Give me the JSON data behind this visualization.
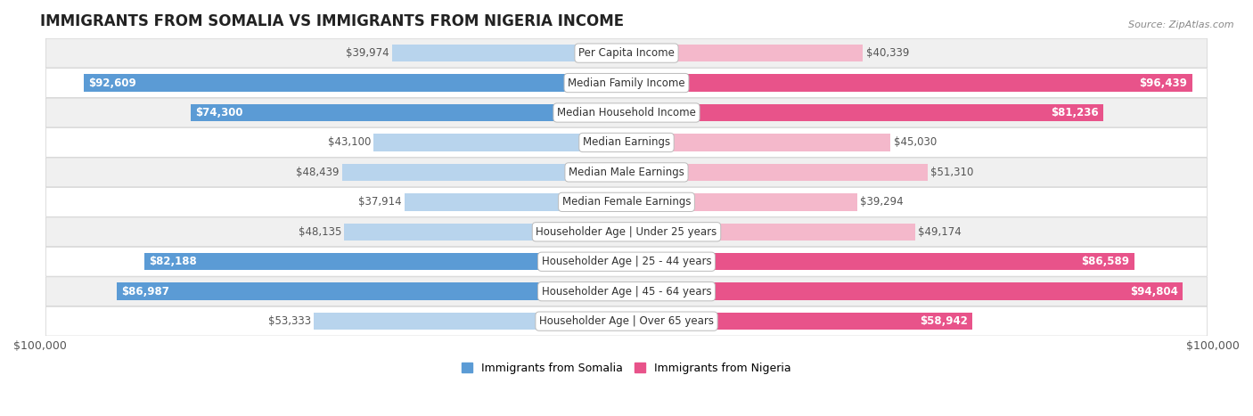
{
  "title": "IMMIGRANTS FROM SOMALIA VS IMMIGRANTS FROM NIGERIA INCOME",
  "source": "Source: ZipAtlas.com",
  "categories": [
    "Per Capita Income",
    "Median Family Income",
    "Median Household Income",
    "Median Earnings",
    "Median Male Earnings",
    "Median Female Earnings",
    "Householder Age | Under 25 years",
    "Householder Age | 25 - 44 years",
    "Householder Age | 45 - 64 years",
    "Householder Age | Over 65 years"
  ],
  "somalia_values": [
    39974,
    92609,
    74300,
    43100,
    48439,
    37914,
    48135,
    82188,
    86987,
    53333
  ],
  "nigeria_values": [
    40339,
    96439,
    81236,
    45030,
    51310,
    39294,
    49174,
    86589,
    94804,
    58942
  ],
  "somalia_labels": [
    "$39,974",
    "$92,609",
    "$74,300",
    "$43,100",
    "$48,439",
    "$37,914",
    "$48,135",
    "$82,188",
    "$86,987",
    "$53,333"
  ],
  "nigeria_labels": [
    "$40,339",
    "$96,439",
    "$81,236",
    "$45,030",
    "$51,310",
    "$39,294",
    "$49,174",
    "$86,589",
    "$94,804",
    "$58,942"
  ],
  "somalia_color_light": "#b8d4ed",
  "somalia_color_dark": "#5b9bd5",
  "nigeria_color_light": "#f4b8cb",
  "nigeria_color_dark": "#e8538a",
  "max_value": 100000,
  "bar_height": 0.58,
  "row_bg_even": "#f0f0f0",
  "row_bg_odd": "#ffffff",
  "label_fontsize": 8.5,
  "title_fontsize": 12,
  "cat_fontsize": 8.5,
  "legend_somalia": "Immigrants from Somalia",
  "legend_nigeria": "Immigrants from Nigeria",
  "large_threshold": 55000,
  "outside_label_color": "#555555"
}
